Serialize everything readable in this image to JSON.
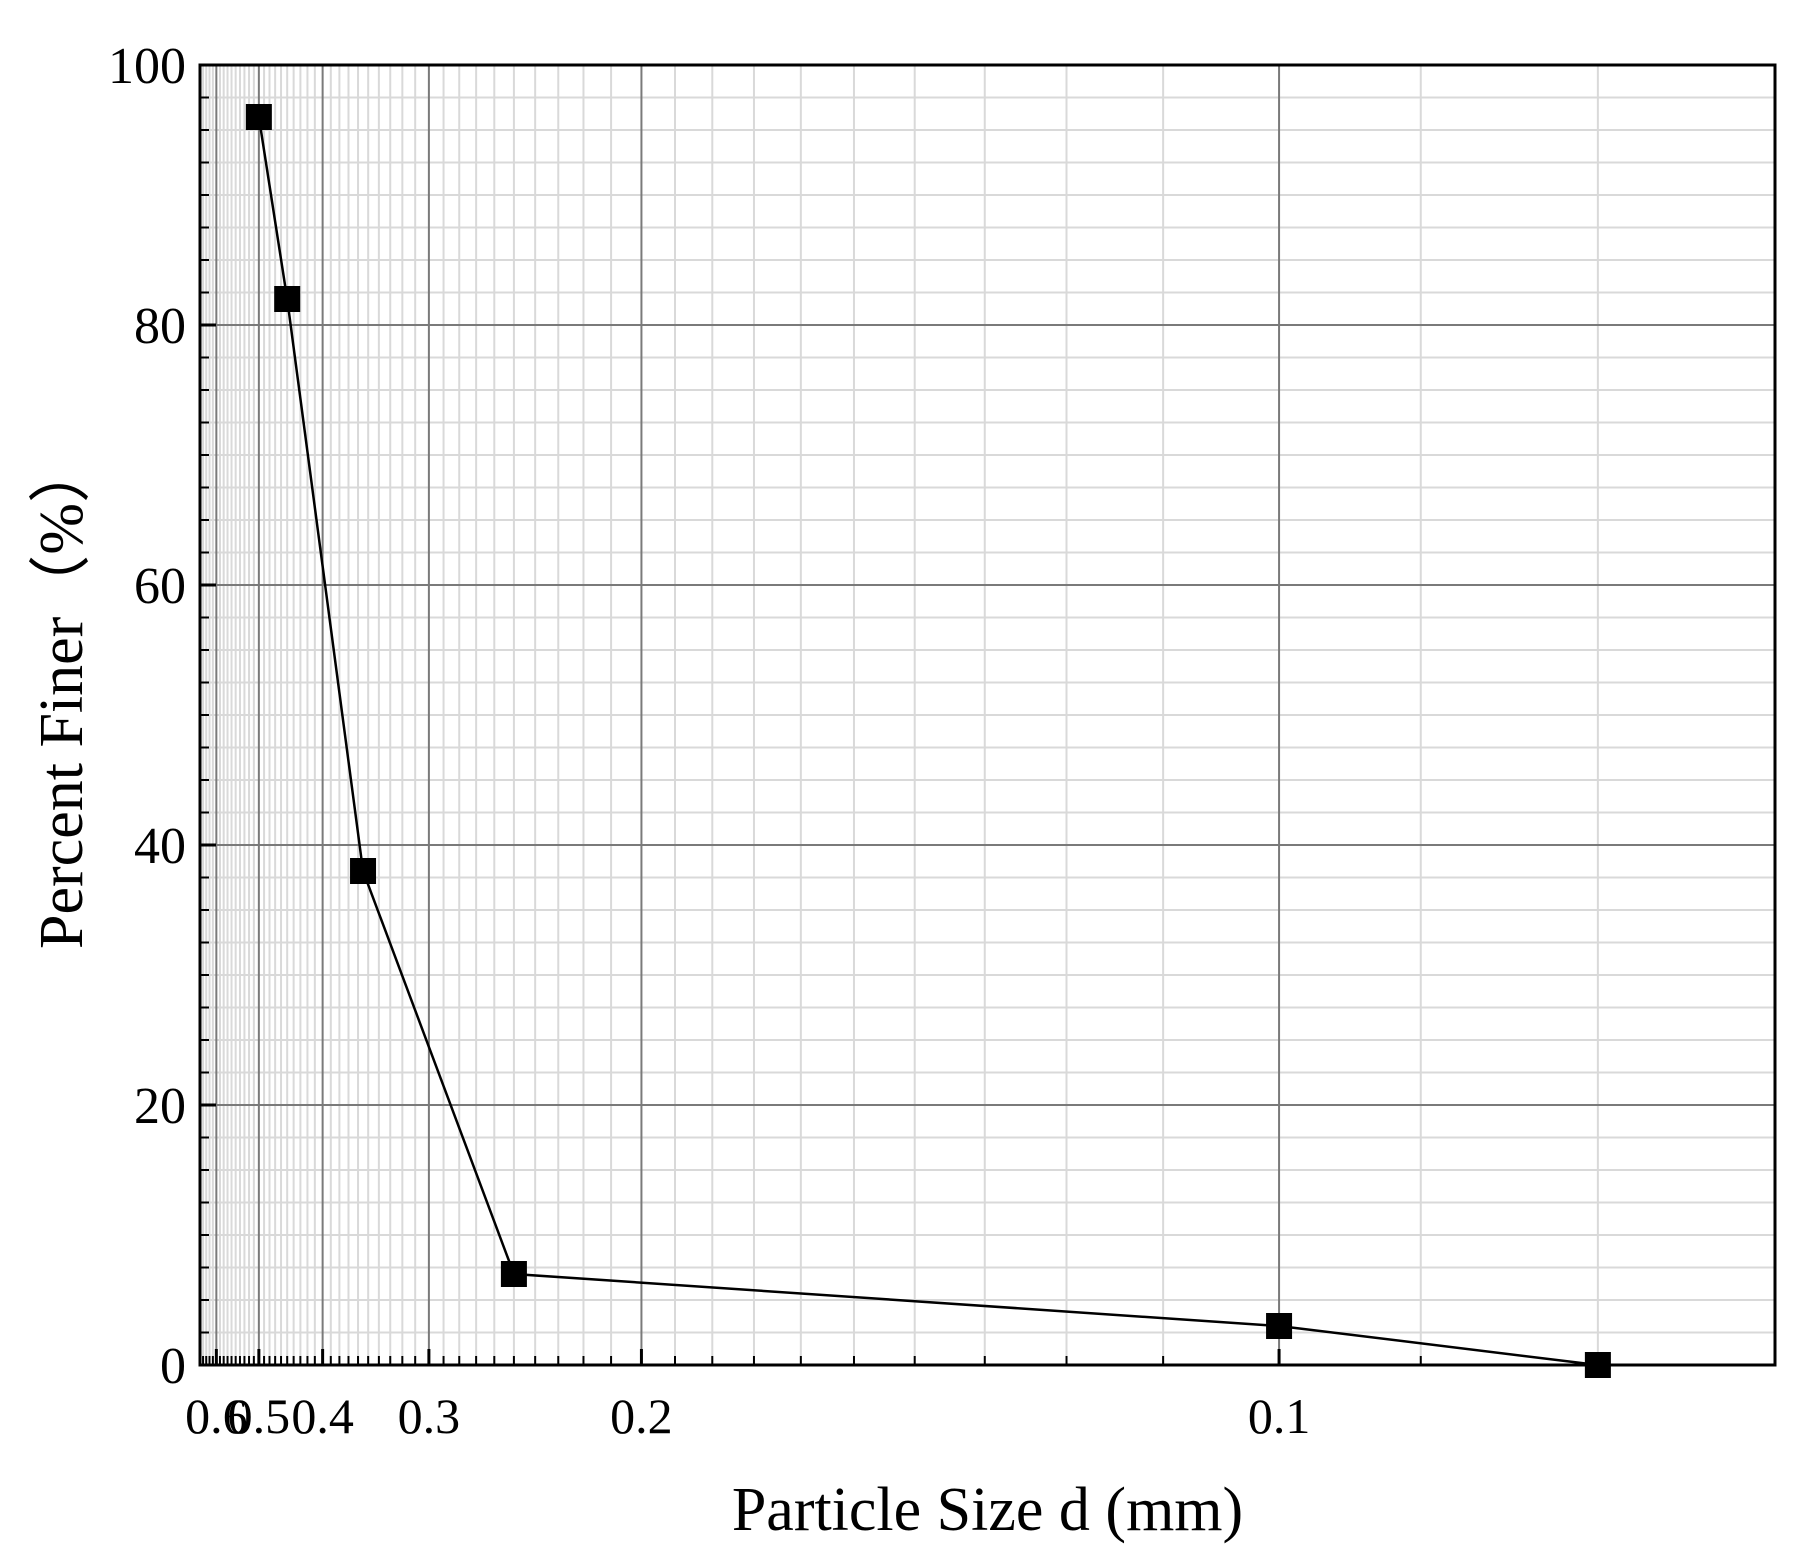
{
  "chart_data": {
    "type": "line",
    "title": "",
    "xlabel": "Particle Size d (mm)",
    "ylabel": "Percent Finer（%）",
    "x_scale": "reciprocal",
    "x_axis_direction": "decreasing to the right",
    "xlim": [
      0.65,
      0.072
    ],
    "ylim": [
      0,
      100
    ],
    "x_major_ticks": [
      0.6,
      0.5,
      0.4,
      0.3,
      0.2,
      0.1
    ],
    "x_tick_labels": [
      "0.6",
      "0.5",
      "0.4",
      "0.3",
      "0.2",
      "0.1"
    ],
    "y_major_ticks": [
      0,
      20,
      40,
      60,
      80,
      100
    ],
    "y_tick_labels": [
      "0",
      "20",
      "40",
      "60",
      "80",
      "100"
    ],
    "grid": true,
    "minor_grid": true,
    "legend": "none",
    "marker": "filled-square",
    "series": [
      {
        "color": "#000000",
        "points": [
          {
            "x": 0.5,
            "y": 96
          },
          {
            "x": 0.45,
            "y": 82
          },
          {
            "x": 0.355,
            "y": 38
          },
          {
            "x": 0.25,
            "y": 7
          },
          {
            "x": 0.1,
            "y": 3
          },
          {
            "x": 0.08,
            "y": 0
          }
        ]
      }
    ]
  }
}
